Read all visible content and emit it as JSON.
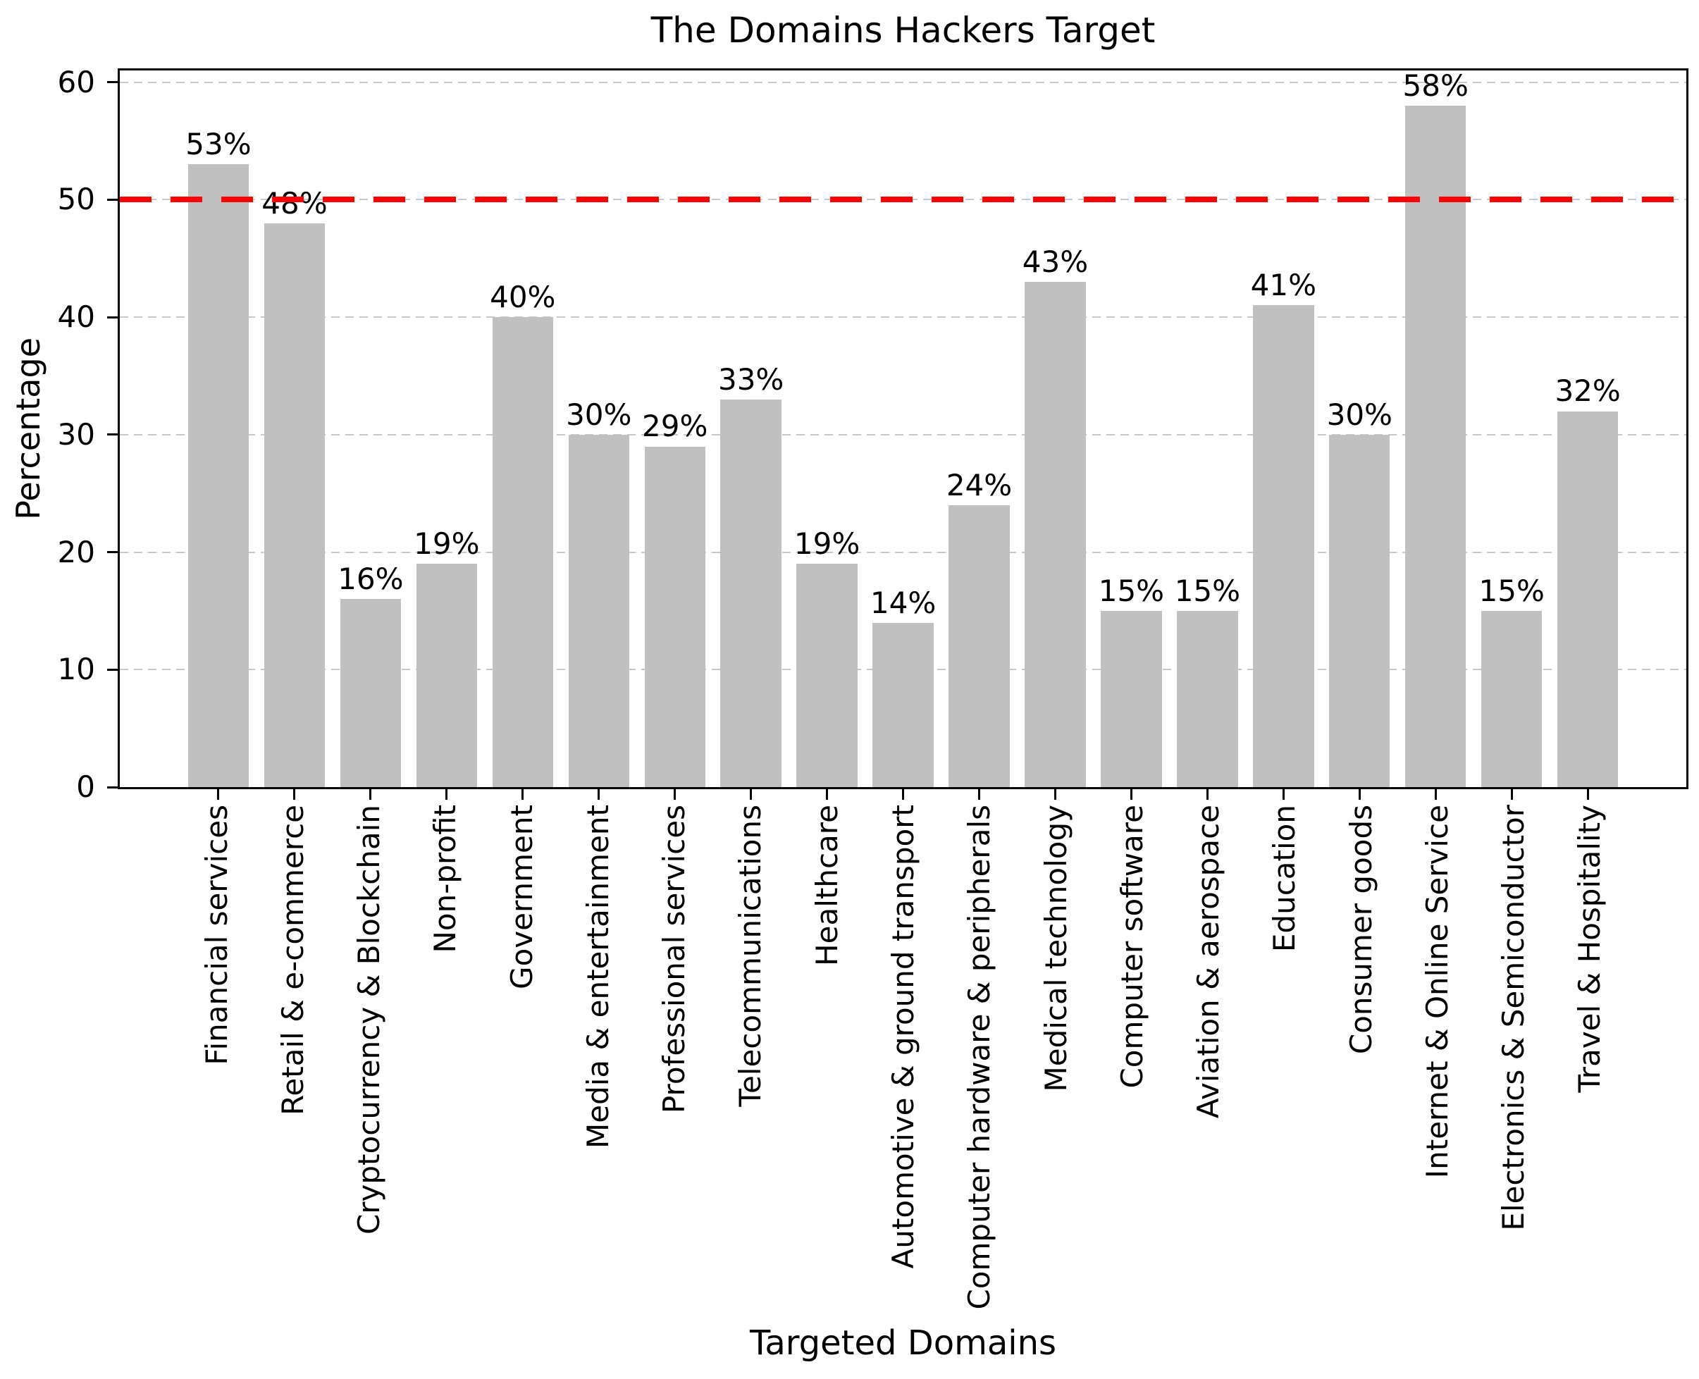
{
  "chart_data": {
    "type": "bar",
    "title": "The Domains Hackers Target",
    "xlabel": "Targeted Domains",
    "ylabel": "Percentage",
    "categories": [
      "Financial services",
      "Retail & e-commerce",
      "Cryptocurrency & Blockchain",
      "Non-profit",
      "Government",
      "Media & entertainment",
      "Professional services",
      "Telecommunications",
      "Healthcare",
      "Automotive & ground transport",
      "Computer hardware & peripherals",
      "Medical technology",
      "Computer software",
      "Aviation & aerospace",
      "Education",
      "Consumer goods",
      "Internet & Online Service",
      "Electronics & Semiconductor",
      "Travel & Hospitality"
    ],
    "values": [
      53,
      48,
      16,
      19,
      40,
      30,
      29,
      33,
      19,
      14,
      24,
      43,
      15,
      15,
      41,
      30,
      58,
      15,
      32
    ],
    "value_labels": [
      "53%",
      "48%",
      "16%",
      "19%",
      "40%",
      "30%",
      "29%",
      "33%",
      "19%",
      "14%",
      "24%",
      "43%",
      "15%",
      "15%",
      "41%",
      "30%",
      "58%",
      "15%",
      "32%"
    ],
    "yticks": [
      0,
      10,
      20,
      30,
      40,
      50,
      60
    ],
    "ylim": [
      0,
      61
    ],
    "grid": "horizontal-dashed",
    "legend": "none",
    "reference_line": {
      "value": 50,
      "color": "#ff0000",
      "style": "dashed"
    },
    "colors": {
      "bar": "#c0c0c0",
      "grid": "#c8c8c8",
      "axis": "#000000",
      "text": "#000000",
      "background": "#ffffff"
    }
  }
}
